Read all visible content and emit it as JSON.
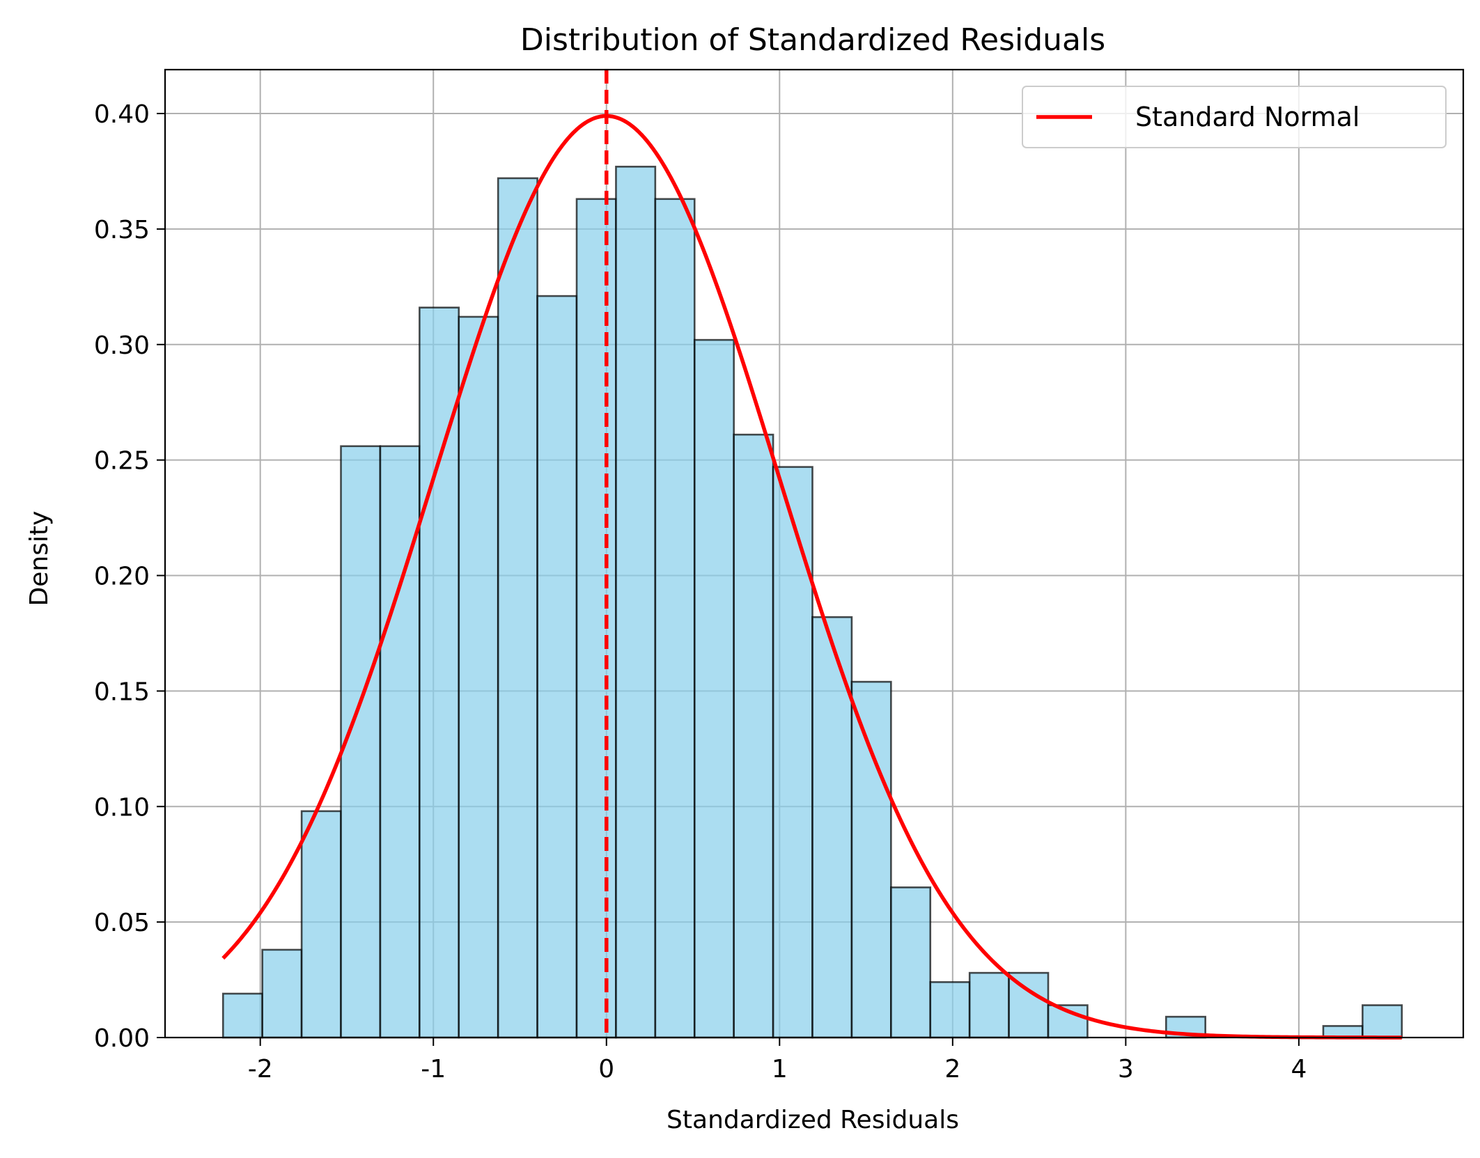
{
  "chart_data": {
    "type": "bar",
    "title": "Distribution of Standardized Residuals",
    "xlabel": "Standardized Residuals",
    "ylabel": "Density",
    "xlim": [
      -2.55,
      4.95
    ],
    "ylim": [
      0.0,
      0.419
    ],
    "xticks": [
      -2,
      -1,
      0,
      1,
      2,
      3,
      4
    ],
    "yticks": [
      0.0,
      0.05,
      0.1,
      0.15,
      0.2,
      0.25,
      0.3,
      0.35,
      0.4
    ],
    "ytick_labels": [
      "0.00",
      "0.05",
      "0.10",
      "0.15",
      "0.20",
      "0.25",
      "0.30",
      "0.35",
      "0.40"
    ],
    "grid": true,
    "legend": {
      "position": "top-right",
      "entries": [
        "Standard Normal"
      ]
    },
    "bin_width": 0.227,
    "bins": [
      {
        "x0": -2.215,
        "x1": -1.988,
        "density": 0.019
      },
      {
        "x0": -1.988,
        "x1": -1.761,
        "density": 0.038
      },
      {
        "x0": -1.761,
        "x1": -1.534,
        "density": 0.098
      },
      {
        "x0": -1.534,
        "x1": -1.307,
        "density": 0.256
      },
      {
        "x0": -1.307,
        "x1": -1.08,
        "density": 0.256
      },
      {
        "x0": -1.08,
        "x1": -0.853,
        "density": 0.316
      },
      {
        "x0": -0.853,
        "x1": -0.626,
        "density": 0.312
      },
      {
        "x0": -0.626,
        "x1": -0.399,
        "density": 0.372
      },
      {
        "x0": -0.399,
        "x1": -0.172,
        "density": 0.321
      },
      {
        "x0": -0.172,
        "x1": 0.055,
        "density": 0.363
      },
      {
        "x0": 0.055,
        "x1": 0.282,
        "density": 0.377
      },
      {
        "x0": 0.282,
        "x1": 0.509,
        "density": 0.363
      },
      {
        "x0": 0.509,
        "x1": 0.736,
        "density": 0.302
      },
      {
        "x0": 0.736,
        "x1": 0.963,
        "density": 0.261
      },
      {
        "x0": 0.963,
        "x1": 1.19,
        "density": 0.247
      },
      {
        "x0": 1.19,
        "x1": 1.417,
        "density": 0.182
      },
      {
        "x0": 1.417,
        "x1": 1.644,
        "density": 0.154
      },
      {
        "x0": 1.644,
        "x1": 1.871,
        "density": 0.065
      },
      {
        "x0": 1.871,
        "x1": 2.098,
        "density": 0.024
      },
      {
        "x0": 2.098,
        "x1": 2.325,
        "density": 0.028
      },
      {
        "x0": 2.325,
        "x1": 2.552,
        "density": 0.028
      },
      {
        "x0": 2.552,
        "x1": 2.779,
        "density": 0.014
      },
      {
        "x0": 2.779,
        "x1": 3.006,
        "density": 0.0
      },
      {
        "x0": 3.006,
        "x1": 3.233,
        "density": 0.0
      },
      {
        "x0": 3.233,
        "x1": 3.46,
        "density": 0.009
      },
      {
        "x0": 3.46,
        "x1": 3.687,
        "density": 0.0
      },
      {
        "x0": 3.687,
        "x1": 3.914,
        "density": 0.0
      },
      {
        "x0": 3.914,
        "x1": 4.141,
        "density": 0.0
      },
      {
        "x0": 4.141,
        "x1": 4.368,
        "density": 0.005
      },
      {
        "x0": 4.368,
        "x1": 4.595,
        "density": 0.014
      }
    ],
    "series": [
      {
        "name": "Standard Normal",
        "type": "line",
        "color": "#ff0000",
        "function": "standard_normal_pdf",
        "x_range": [
          -2.215,
          4.595
        ]
      }
    ],
    "reference_line": {
      "x": 0,
      "style": "dashed",
      "color": "#ff0000"
    },
    "colors": {
      "bar_fill": "#87ceeb",
      "bar_edge": "#000000",
      "grid": "#b0b0b0",
      "normal_curve": "#ff0000"
    }
  }
}
